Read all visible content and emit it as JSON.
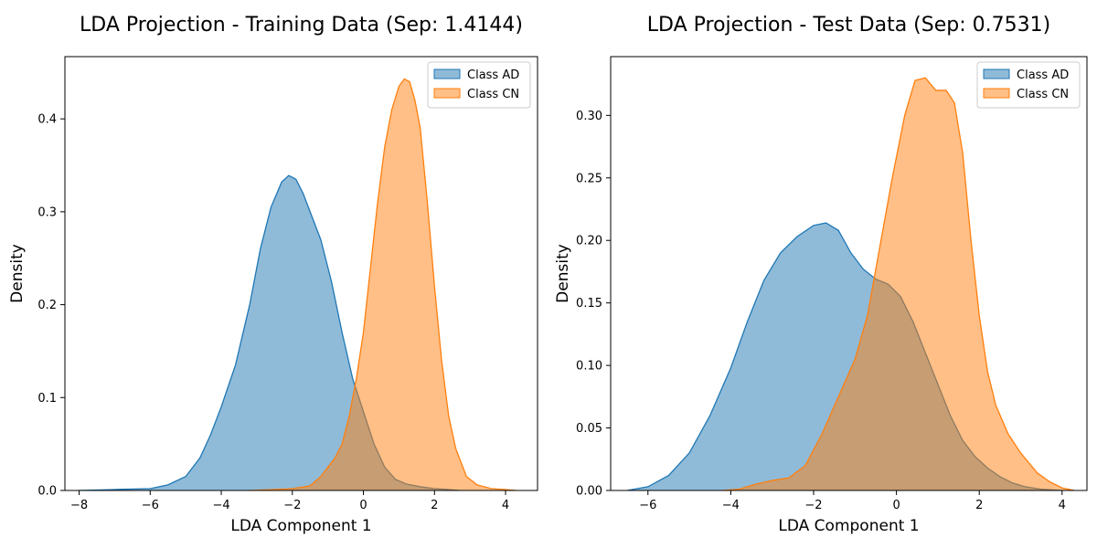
{
  "chart_data": [
    {
      "type": "area",
      "title": "LDA Projection - Training Data (Sep: 1.4144)",
      "xlabel": "LDA Component 1",
      "ylabel": "Density",
      "xlim": [
        -8.4,
        4.9
      ],
      "ylim": [
        0,
        0.467
      ],
      "xticks": [
        -8,
        -6,
        -4,
        -2,
        0,
        2,
        4
      ],
      "yticks": [
        0.0,
        0.1,
        0.2,
        0.3,
        0.4
      ],
      "legend_position": "top-right",
      "grid": false,
      "series": [
        {
          "name": "Class AD",
          "color": "#1f77b4",
          "x": [
            -8.0,
            -7.0,
            -6.0,
            -5.5,
            -5.0,
            -4.6,
            -4.3,
            -4.0,
            -3.6,
            -3.2,
            -2.9,
            -2.6,
            -2.3,
            -2.1,
            -1.9,
            -1.7,
            -1.5,
            -1.2,
            -0.9,
            -0.6,
            -0.3,
            0.0,
            0.3,
            0.6,
            0.9,
            1.2,
            1.6,
            2.0,
            2.4,
            2.7
          ],
          "y": [
            0.0,
            0.001,
            0.002,
            0.006,
            0.015,
            0.035,
            0.06,
            0.09,
            0.135,
            0.2,
            0.26,
            0.305,
            0.332,
            0.339,
            0.335,
            0.32,
            0.3,
            0.27,
            0.225,
            0.17,
            0.12,
            0.085,
            0.05,
            0.025,
            0.012,
            0.007,
            0.004,
            0.002,
            0.001,
            0.0
          ]
        },
        {
          "name": "Class CN",
          "color": "#ff7f0e",
          "x": [
            -3.2,
            -2.5,
            -2.0,
            -1.5,
            -1.2,
            -1.0,
            -0.8,
            -0.6,
            -0.4,
            -0.2,
            0.0,
            0.2,
            0.4,
            0.6,
            0.8,
            1.0,
            1.15,
            1.3,
            1.45,
            1.6,
            1.8,
            2.0,
            2.2,
            2.4,
            2.6,
            2.9,
            3.2,
            3.6,
            4.0,
            4.3
          ],
          "y": [
            0.0,
            0.001,
            0.002,
            0.005,
            0.015,
            0.025,
            0.035,
            0.05,
            0.08,
            0.12,
            0.17,
            0.24,
            0.31,
            0.37,
            0.41,
            0.435,
            0.443,
            0.44,
            0.42,
            0.39,
            0.31,
            0.22,
            0.14,
            0.08,
            0.045,
            0.015,
            0.006,
            0.002,
            0.001,
            0.0
          ]
        }
      ]
    },
    {
      "type": "area",
      "title": "LDA Projection - Test Data (Sep: 0.7531)",
      "xlabel": "LDA Component 1",
      "ylabel": "Density",
      "xlim": [
        -6.9,
        4.6
      ],
      "ylim": [
        0,
        0.347
      ],
      "xticks": [
        -6,
        -4,
        -2,
        0,
        2,
        4
      ],
      "yticks": [
        0.0,
        0.05,
        0.1,
        0.15,
        0.2,
        0.25,
        0.3
      ],
      "legend_position": "top-right",
      "grid": false,
      "series": [
        {
          "name": "Class AD",
          "color": "#1f77b4",
          "x": [
            -6.5,
            -6.0,
            -5.5,
            -5.0,
            -4.5,
            -4.0,
            -3.6,
            -3.2,
            -2.8,
            -2.4,
            -2.0,
            -1.7,
            -1.4,
            -1.1,
            -0.8,
            -0.5,
            -0.2,
            0.1,
            0.4,
            0.7,
            1.0,
            1.3,
            1.6,
            1.9,
            2.2,
            2.5,
            2.8,
            3.1,
            3.5,
            4.0
          ],
          "y": [
            0.0,
            0.003,
            0.012,
            0.03,
            0.06,
            0.098,
            0.135,
            0.168,
            0.19,
            0.203,
            0.212,
            0.214,
            0.208,
            0.19,
            0.177,
            0.169,
            0.165,
            0.155,
            0.135,
            0.11,
            0.085,
            0.06,
            0.04,
            0.027,
            0.018,
            0.011,
            0.006,
            0.003,
            0.001,
            0.0
          ]
        },
        {
          "name": "Class CN",
          "color": "#ff7f0e",
          "x": [
            -4.2,
            -3.8,
            -3.4,
            -3.0,
            -2.6,
            -2.2,
            -1.8,
            -1.4,
            -1.0,
            -0.7,
            -0.4,
            -0.1,
            0.2,
            0.45,
            0.7,
            0.95,
            1.2,
            1.4,
            1.6,
            1.8,
            2.0,
            2.2,
            2.4,
            2.7,
            3.0,
            3.2,
            3.4,
            3.7,
            4.0,
            4.3
          ],
          "y": [
            0.0,
            0.001,
            0.005,
            0.008,
            0.01,
            0.02,
            0.045,
            0.075,
            0.105,
            0.14,
            0.195,
            0.25,
            0.3,
            0.328,
            0.33,
            0.32,
            0.32,
            0.31,
            0.27,
            0.2,
            0.14,
            0.095,
            0.068,
            0.045,
            0.03,
            0.022,
            0.014,
            0.007,
            0.002,
            0.0
          ]
        }
      ]
    }
  ]
}
